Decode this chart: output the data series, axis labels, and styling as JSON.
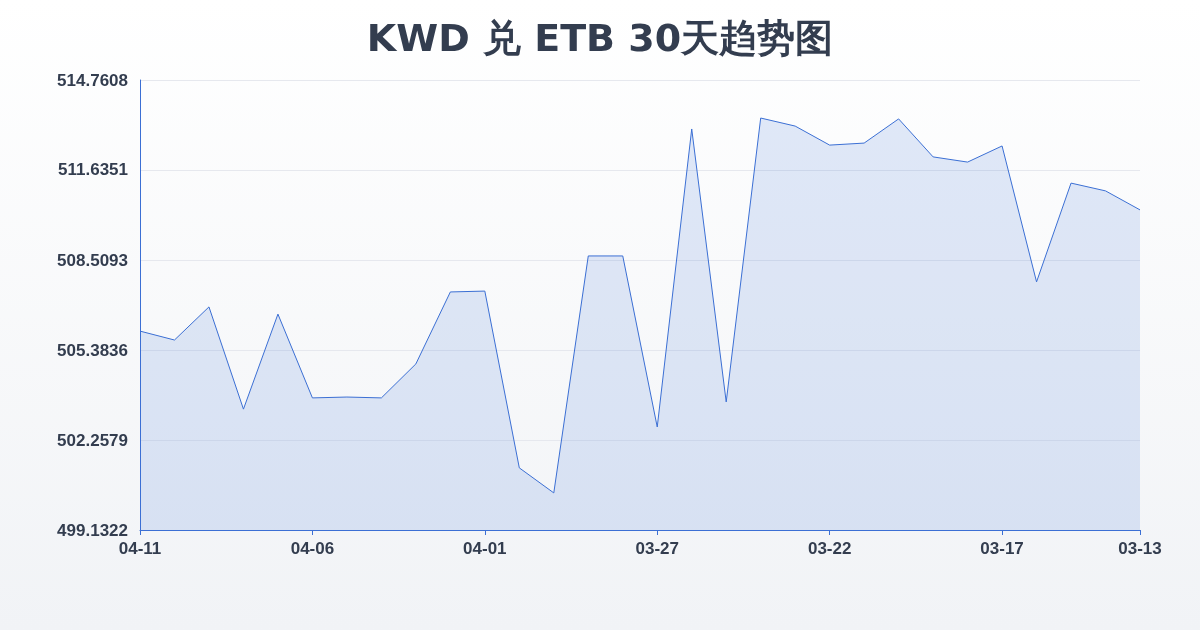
{
  "chart_data": {
    "type": "area",
    "title": "KWD 兑 ETB 30天趋势图",
    "categories": [
      "04-11",
      null,
      null,
      null,
      null,
      "04-06",
      null,
      null,
      null,
      null,
      "04-01",
      null,
      null,
      null,
      null,
      "03-27",
      null,
      null,
      null,
      null,
      "03-22",
      null,
      null,
      null,
      null,
      "03-17",
      null,
      null,
      null,
      "03-13"
    ],
    "series": [
      {
        "color": "#3b6fd4",
        "values": [
          506.04,
          505.73,
          506.88,
          503.33,
          506.63,
          503.72,
          503.75,
          503.72,
          504.9,
          507.4,
          507.43,
          501.29,
          500.42,
          508.65,
          508.65,
          502.71,
          513.06,
          503.58,
          513.44,
          513.16,
          512.5,
          512.57,
          513.41,
          512.09,
          511.91,
          512.47,
          507.75,
          511.18,
          510.91,
          510.25
        ]
      }
    ],
    "ylim": [
      499.1322,
      514.7608
    ],
    "yticks": [
      499.1322,
      502.2579,
      505.3836,
      508.5093,
      511.6351,
      514.7608
    ],
    "grid": "y",
    "marker": "none"
  }
}
